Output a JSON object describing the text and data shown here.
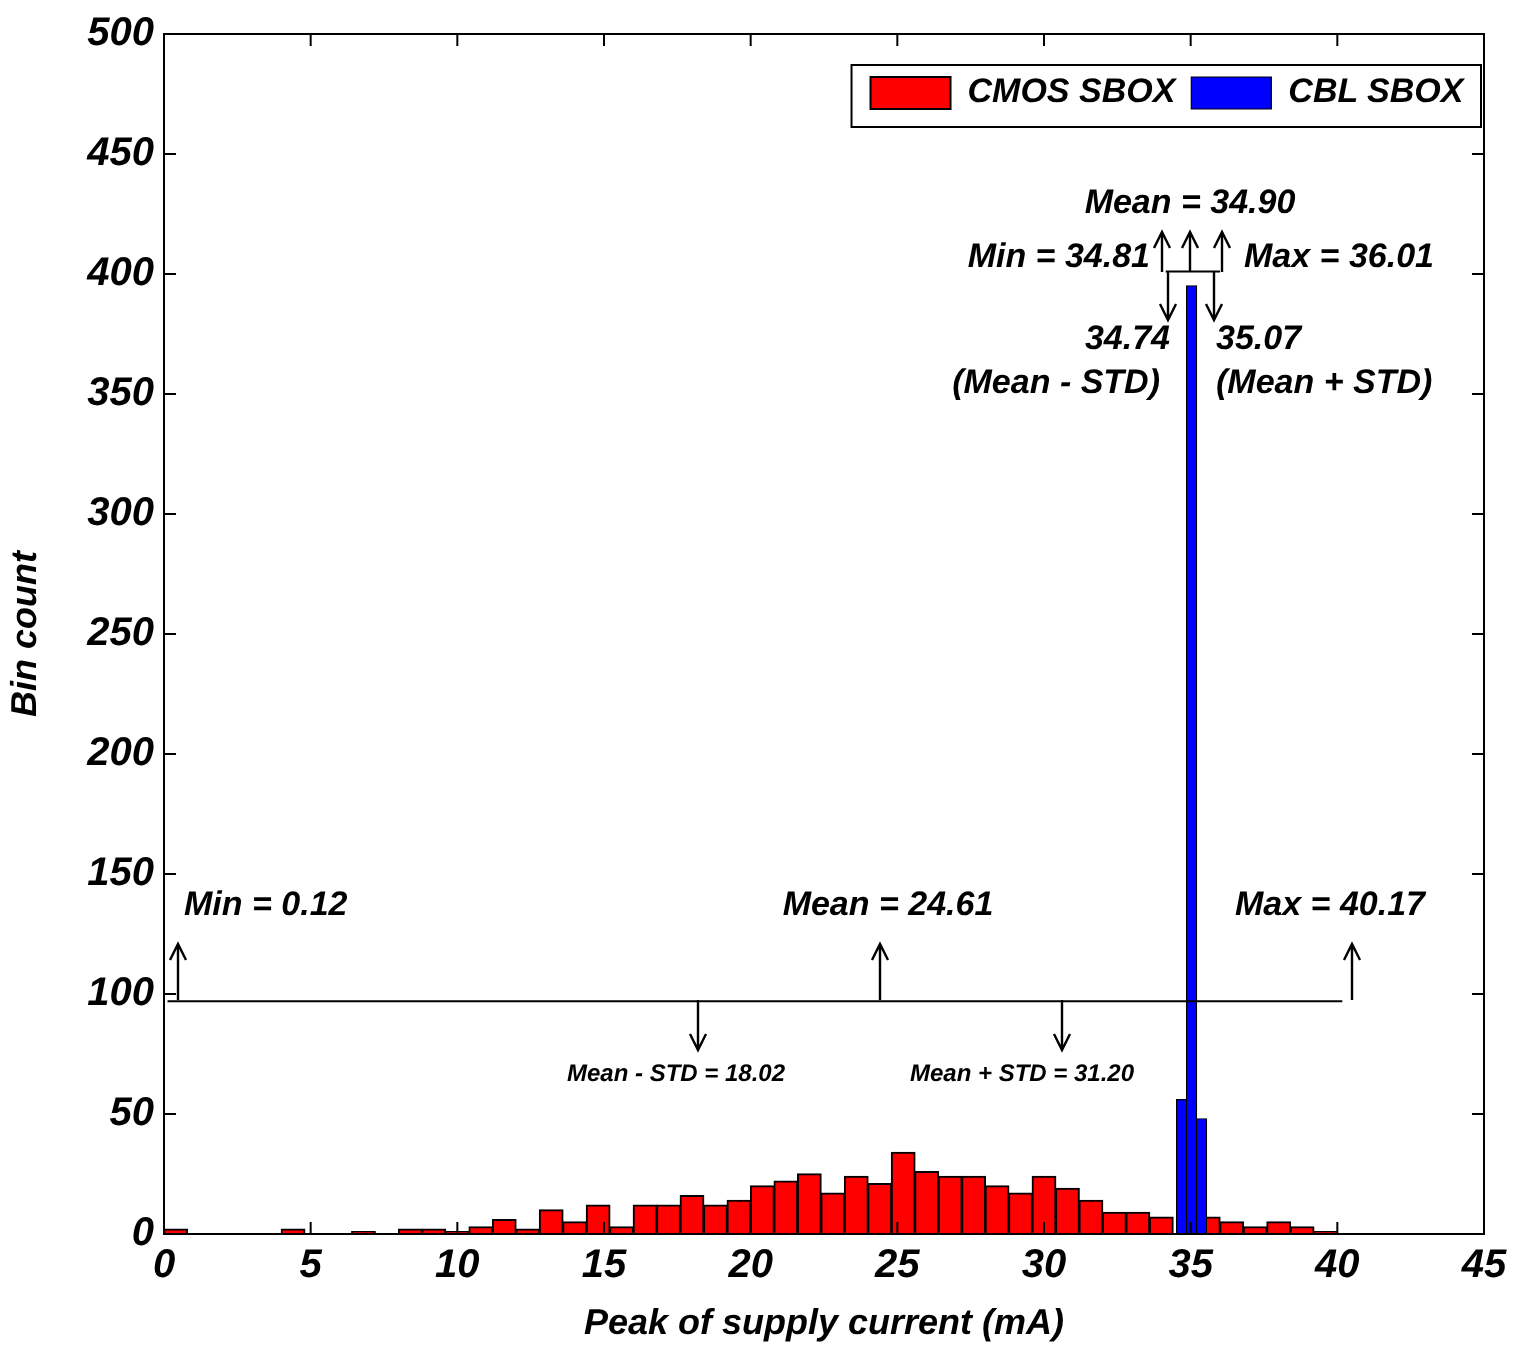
{
  "chart_data": {
    "type": "histogram",
    "xlabel": "Peak of supply current (mA)",
    "ylabel": "Bin count",
    "xlim": [
      0,
      45
    ],
    "xticks": [
      0,
      5,
      10,
      15,
      20,
      25,
      30,
      35,
      40,
      45
    ],
    "ylim": [
      0,
      500
    ],
    "yticks": [
      0,
      50,
      100,
      150,
      200,
      250,
      300,
      350,
      400,
      450,
      500
    ],
    "grid": false,
    "legend": "top right",
    "bins": [
      0,
      0.8,
      1.6,
      2.4,
      3.2,
      4,
      4.8,
      5.6,
      6.4,
      7.2,
      8,
      8.8,
      9.6,
      10.4,
      11.2,
      12,
      12.8,
      13.6,
      14.4,
      15.2,
      16,
      16.8,
      17.6,
      18.4,
      19.2,
      20,
      20.8,
      21.6,
      22.4,
      23.2,
      24,
      24.8,
      25.6,
      26.4,
      27.2,
      28,
      28.8,
      29.6,
      30.4,
      31.2,
      32,
      32.8,
      33.6,
      34.4,
      35.2,
      36,
      36.8,
      37.6,
      38.4,
      39.2,
      40
    ],
    "series": [
      {
        "name": "CMOS SBOX",
        "color": "#ff0000",
        "values": [
          2,
          0,
          0,
          0,
          0,
          2,
          0,
          0,
          1,
          0,
          2,
          2,
          1,
          3,
          6,
          2,
          10,
          5,
          12,
          3,
          12,
          12,
          16,
          12,
          14,
          20,
          22,
          25,
          17,
          24,
          21,
          34,
          26,
          24,
          24,
          20,
          17,
          24,
          19,
          14,
          9,
          9,
          7,
          null,
          7,
          5,
          3,
          5,
          3,
          1
        ]
      },
      {
        "name": "CBL SBOX",
        "type": "bar",
        "color": "#0000ff",
        "x": [
          34.69,
          35.03,
          35.37
        ],
        "values": [
          56,
          395,
          48
        ]
      },
      {
        "type": "line",
        "color": "#000000",
        "x": [
          0.12,
          40.17
        ],
        "values": [
          97,
          97
        ]
      },
      {
        "type": "line",
        "color": "#000000",
        "x": [
          34.15,
          36.0
        ],
        "values": [
          401,
          401
        ]
      }
    ],
    "annotations": [
      "Min = 0.12",
      "Mean = 24.61",
      "Max = 40.17",
      "Mean - STD = 18.02",
      "Mean + STD = 31.20",
      "Min = 34.81",
      "Mean = 34.90",
      "Max = 36.01",
      "34.74\n(Mean - STD)",
      "35.07\n(Mean + STD)"
    ]
  }
}
